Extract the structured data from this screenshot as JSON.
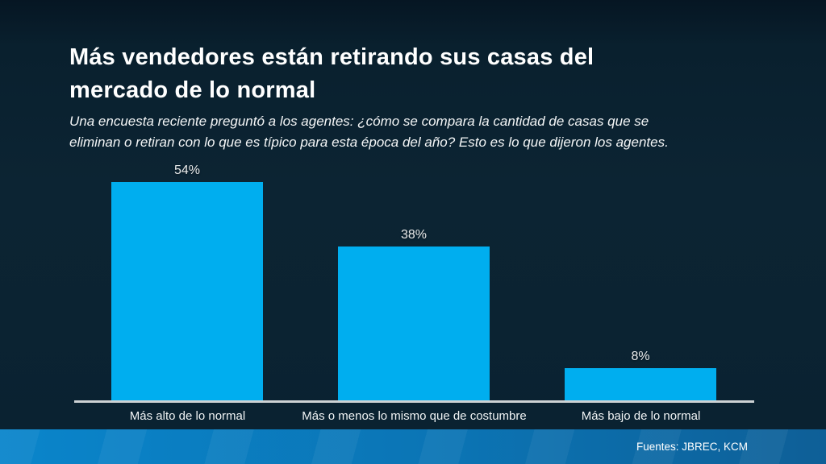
{
  "slide": {
    "title_line1": "Más vendedores están retirando sus casas del",
    "title_line2": "mercado de lo normal",
    "subtitle_line1": "Una encuesta reciente preguntó a los agentes: ¿cómo se compara la cantidad de casas que se",
    "subtitle_line2": "eliminan o retiran con lo que es típico para esta época del año? Esto es lo que dijeron los agentes."
  },
  "chart_data": {
    "type": "bar",
    "title": "Más vendedores están retirando sus casas del mercado de lo normal",
    "subtitle": "Una encuesta reciente preguntó a los agentes: ¿cómo se compara la cantidad de casas que se eliminan o retiran con lo que es típico para esta época del año? Esto es lo que dijeron los agentes.",
    "categories": [
      "Más alto de lo normal",
      "Más o menos lo mismo que de costumbre",
      "Más bajo de lo normal"
    ],
    "values": [
      54,
      38,
      8
    ],
    "value_labels": [
      "54%",
      "38%",
      "8%"
    ],
    "unit": "%",
    "xlabel": "",
    "ylabel": "",
    "ylim": [
      0,
      60
    ],
    "grid": false,
    "legend": false,
    "bar_color": "#00AEEF",
    "axis_line_color": "#CDD2D4",
    "label_color": "#FFFFFF"
  },
  "footer": {
    "source": "Fuentes: JBREC, KCM"
  },
  "colors": {
    "background_top": "#061623",
    "background_mid": "#0c2433",
    "footer_left": "#0A85CB",
    "footer_right": "#0E5F97",
    "text": "#FFFFFF"
  }
}
